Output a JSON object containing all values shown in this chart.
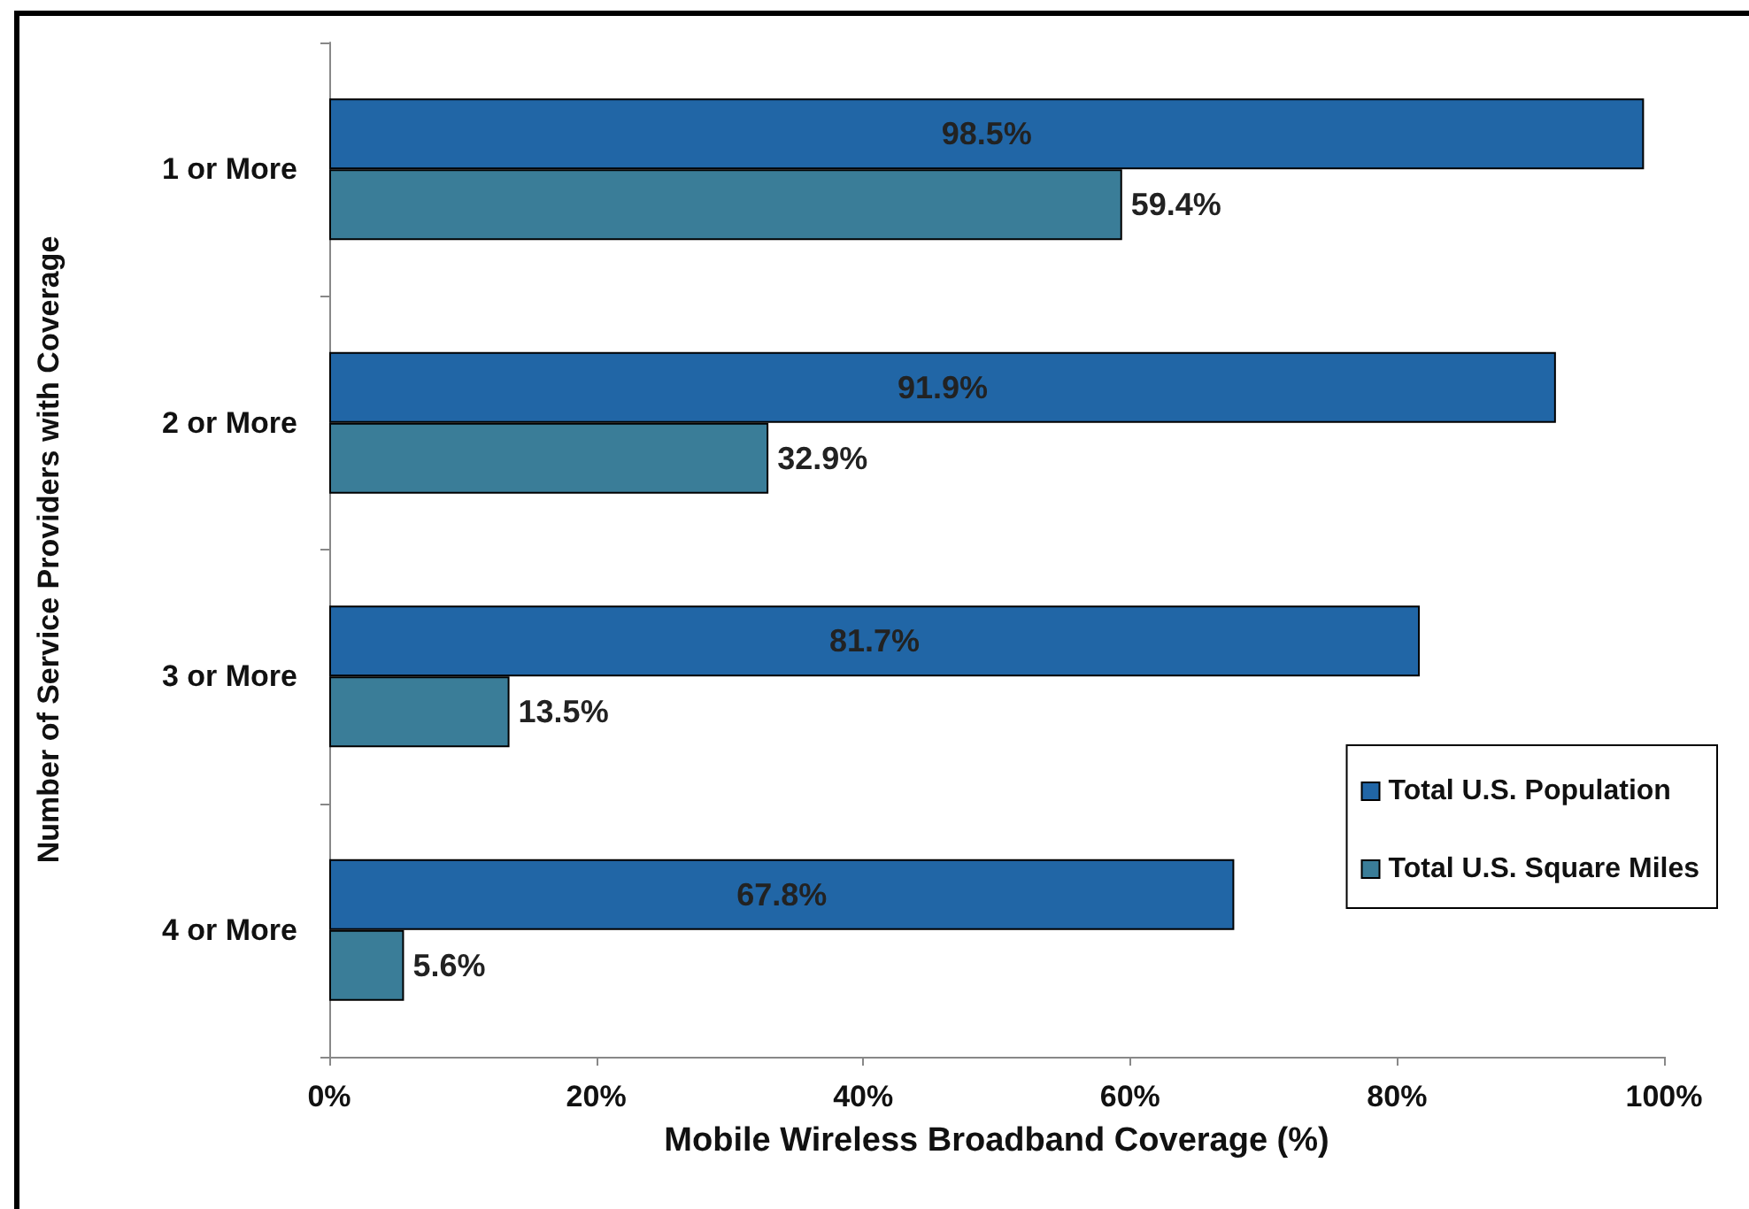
{
  "chart_data": {
    "type": "bar",
    "orientation": "horizontal",
    "xlabel": "Mobile Wireless Broadband Coverage (%)",
    "ylabel": "Number of Service Providers with Coverage",
    "categories": [
      "1 or More",
      "2 or More",
      "3 or More",
      "4 or More"
    ],
    "series": [
      {
        "name": "Total U.S. Population",
        "color": "#2166a6",
        "values": [
          98.5,
          91.9,
          81.7,
          67.8
        ],
        "value_labels": [
          "98.5%",
          "91.9%",
          "81.7%",
          "67.8%"
        ]
      },
      {
        "name": "Total U.S. Square Miles",
        "color": "#3a7d98",
        "values": [
          59.4,
          32.9,
          13.5,
          5.6
        ],
        "value_labels": [
          "59.4%",
          "32.9%",
          "13.5%",
          "5.6%"
        ]
      }
    ],
    "xlim": [
      0,
      100
    ],
    "xticks": [
      {
        "value": 0,
        "label": "0%"
      },
      {
        "value": 20,
        "label": "20%"
      },
      {
        "value": 40,
        "label": "40%"
      },
      {
        "value": 60,
        "label": "60%"
      },
      {
        "value": 80,
        "label": "80%"
      },
      {
        "value": 100,
        "label": "100%"
      }
    ],
    "grid": false,
    "legend": "bottom right"
  }
}
